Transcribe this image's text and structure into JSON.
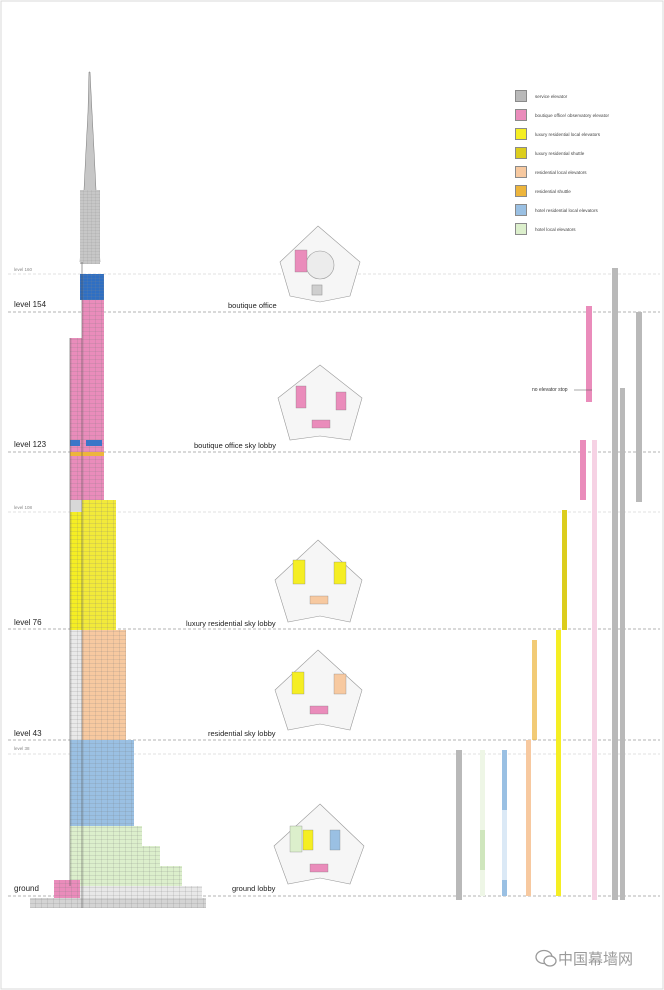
{
  "legend": [
    {
      "label": "service elevator",
      "color": "#b9b9b9"
    },
    {
      "label": "boutique office/ observatory elevator",
      "color": "#ea8cbb"
    },
    {
      "label": "luxury residential local elevators",
      "color": "#f5ee23"
    },
    {
      "label": "luxury residential shuttle",
      "color": "#dccd1d"
    },
    {
      "label": "residential local elevators",
      "color": "#f7c9a0"
    },
    {
      "label": "residential shuttle",
      "color": "#edb53c"
    },
    {
      "label": "hotel residential local elevators",
      "color": "#9ac0e3"
    },
    {
      "label": "hotel local elevators",
      "color": "#dcefcc"
    }
  ],
  "levels": {
    "level_160": "level 160",
    "level_154": "level 154",
    "level_123": "level 123",
    "level_108": "level 108",
    "level_76": "level 76",
    "level_43": "level 43",
    "level_38": "level 38",
    "ground": "ground"
  },
  "lobbies": {
    "boutique_office": "boutique office",
    "boutique_office_sky_lobby": "boutique office sky lobby",
    "luxury_residential_sky_lobby": "luxury residential sky lobby",
    "residential_sky_lobby": "residential sky lobby",
    "ground_lobby": "ground lobby"
  },
  "annotations": {
    "no_elevator_stop": "no elevator stop"
  },
  "watermark": {
    "text": "中国幕墙网",
    "icon": "wechat-icon"
  }
}
